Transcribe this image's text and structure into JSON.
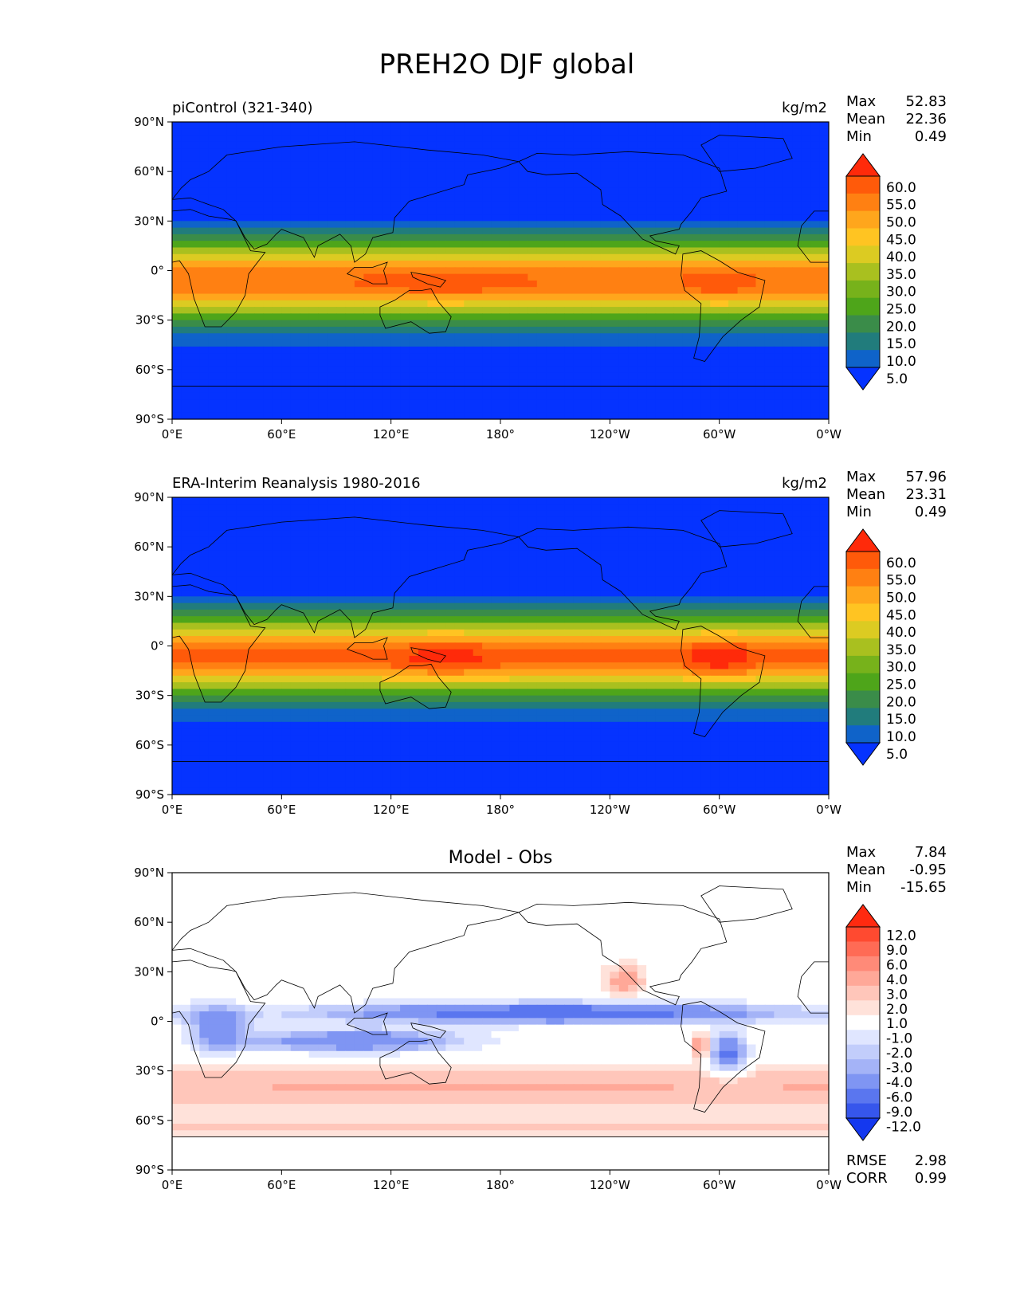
{
  "title": "PREH2O DJF global",
  "chart_data": [
    {
      "type": "heatmap",
      "title": "piControl (321-340)",
      "units": "kg/m2",
      "stats": [
        {
          "label": "Max",
          "value": "52.83"
        },
        {
          "label": "Mean",
          "value": "22.36"
        },
        {
          "label": "Min",
          "value": "0.49"
        }
      ],
      "xticks": [
        "0°E",
        "60°E",
        "120°E",
        "180°",
        "120°W",
        "60°W",
        "0°W"
      ],
      "yticks": [
        "90°N",
        "60°N",
        "30°N",
        "0°",
        "30°S",
        "60°S",
        "90°S"
      ],
      "xlim": [
        0,
        360
      ],
      "ylim": [
        -90,
        90
      ],
      "colorbar": {
        "levels": [
          "60.0",
          "55.0",
          "50.0",
          "45.0",
          "40.0",
          "35.0",
          "30.0",
          "25.0",
          "20.0",
          "15.0",
          "10.0",
          "5.0"
        ],
        "colors": [
          "#ff2a0a",
          "#ff5a0a",
          "#ff8012",
          "#ffa61c",
          "#ffc422",
          "#dccb22",
          "#a9c01f",
          "#77b21b",
          "#4ea51a",
          "#3a8c49",
          "#217c7c",
          "#0f63c9",
          "#0533ff"
        ]
      }
    },
    {
      "type": "heatmap",
      "title": "ERA-Interim Reanalysis 1980-2016",
      "units": "kg/m2",
      "stats": [
        {
          "label": "Max",
          "value": "57.96"
        },
        {
          "label": "Mean",
          "value": "23.31"
        },
        {
          "label": "Min",
          "value": "0.49"
        }
      ],
      "xticks": [
        "0°E",
        "60°E",
        "120°E",
        "180°",
        "120°W",
        "60°W",
        "0°W"
      ],
      "yticks": [
        "90°N",
        "60°N",
        "30°N",
        "0°",
        "30°S",
        "60°S",
        "90°S"
      ],
      "xlim": [
        0,
        360
      ],
      "ylim": [
        -90,
        90
      ],
      "colorbar": {
        "levels": [
          "60.0",
          "55.0",
          "50.0",
          "45.0",
          "40.0",
          "35.0",
          "30.0",
          "25.0",
          "20.0",
          "15.0",
          "10.0",
          "5.0"
        ],
        "colors": [
          "#ff2a0a",
          "#ff5a0a",
          "#ff8012",
          "#ffa61c",
          "#ffc422",
          "#dccb22",
          "#a9c01f",
          "#77b21b",
          "#4ea51a",
          "#3a8c49",
          "#217c7c",
          "#0f63c9",
          "#0533ff"
        ]
      }
    },
    {
      "type": "heatmap",
      "title": "Model - Obs",
      "units": "",
      "stats": [
        {
          "label": "Max",
          "value": "7.84"
        },
        {
          "label": "Mean",
          "value": "-0.95"
        },
        {
          "label": "Min",
          "value": "-15.65"
        }
      ],
      "bottom_stats": [
        {
          "label": "RMSE",
          "value": "2.98"
        },
        {
          "label": "CORR",
          "value": "0.99"
        }
      ],
      "xticks": [
        "0°E",
        "60°E",
        "120°E",
        "180°",
        "120°W",
        "60°W",
        "0°W"
      ],
      "yticks": [
        "90°N",
        "60°N",
        "30°N",
        "0°",
        "30°S",
        "60°S",
        "90°S"
      ],
      "xlim": [
        0,
        360
      ],
      "ylim": [
        -90,
        90
      ],
      "colorbar": {
        "levels": [
          "12.0",
          "9.0",
          "6.0",
          "4.0",
          "3.0",
          "2.0",
          "1.0",
          "-1.0",
          "-2.0",
          "-3.0",
          "-4.0",
          "-6.0",
          "-9.0",
          "-12.0"
        ],
        "colors": [
          "#ff2a10",
          "#ff4a30",
          "#ff6b55",
          "#ff8a78",
          "#ffa898",
          "#ffc6ba",
          "#ffe2da",
          "#ffffff",
          "#e0e6ff",
          "#c2cdfb",
          "#a4b3f7",
          "#7f95f3",
          "#5a76ef",
          "#3656ec",
          "#1438ef"
        ]
      }
    }
  ]
}
